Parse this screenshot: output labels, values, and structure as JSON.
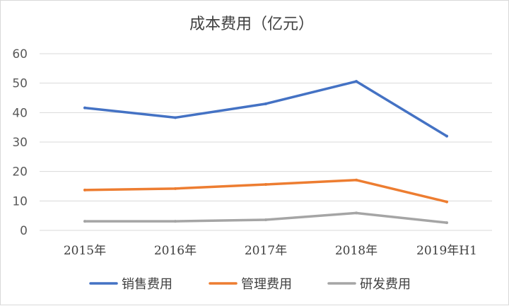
{
  "chart_data": {
    "type": "line",
    "title": "成本费用（亿元）",
    "categories": [
      "2015年",
      "2016年",
      "2017年",
      "2018年",
      "2019年H1"
    ],
    "ylim": [
      0,
      60
    ],
    "yticks": [
      "0",
      "10",
      "20",
      "30",
      "40",
      "50",
      "60"
    ],
    "grid": true,
    "legend": "bottom",
    "series": [
      {
        "name": "销售费用",
        "color": "#4472c4",
        "values": [
          41.6,
          38.3,
          43.0,
          50.6,
          32.0
        ]
      },
      {
        "name": "管理费用",
        "color": "#ed7d31",
        "values": [
          13.7,
          14.2,
          15.6,
          17.1,
          9.7
        ]
      },
      {
        "name": "研发费用",
        "color": "#a5a5a5",
        "values": [
          3.1,
          3.1,
          3.6,
          5.9,
          2.6
        ]
      }
    ]
  }
}
